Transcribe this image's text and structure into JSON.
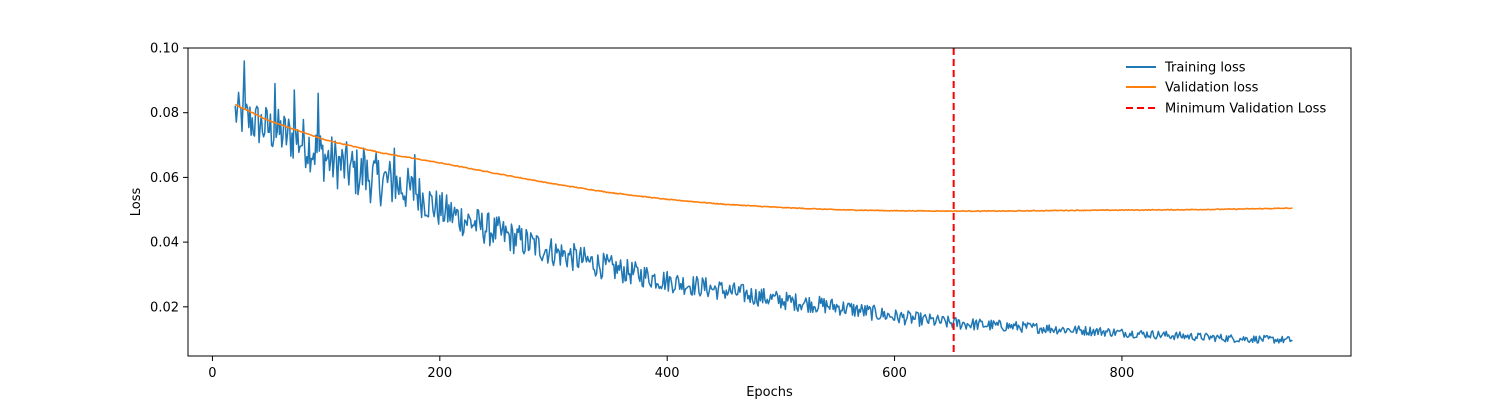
{
  "chart_data": {
    "type": "line",
    "title": "",
    "xlabel": "Epochs",
    "ylabel": "Loss",
    "xlim": [
      -21.5,
      1001.5
    ],
    "ylim": [
      0.0048,
      0.1
    ],
    "xticks": [
      0,
      200,
      400,
      600,
      800
    ],
    "yticks": [
      0.02,
      0.04,
      0.06,
      0.08,
      0.1
    ],
    "ytick_labels": [
      "0.02",
      "0.04",
      "0.06",
      "0.08",
      "0.10"
    ],
    "grid": false,
    "legend_position": "upper-right",
    "series": [
      {
        "name": "Training loss",
        "color": "#1f77b4",
        "style": "solid",
        "x_start": 20,
        "x_end": 950,
        "trend_points": [
          [
            20,
            0.08
          ],
          [
            30,
            0.078
          ],
          [
            50,
            0.075
          ],
          [
            80,
            0.071
          ],
          [
            100,
            0.066
          ],
          [
            130,
            0.061
          ],
          [
            160,
            0.058
          ],
          [
            180,
            0.055
          ],
          [
            200,
            0.05
          ],
          [
            250,
            0.043
          ],
          [
            300,
            0.037
          ],
          [
            350,
            0.032
          ],
          [
            400,
            0.028
          ],
          [
            450,
            0.025
          ],
          [
            500,
            0.022
          ],
          [
            550,
            0.02
          ],
          [
            600,
            0.017
          ],
          [
            650,
            0.015
          ],
          [
            700,
            0.014
          ],
          [
            750,
            0.013
          ],
          [
            800,
            0.012
          ],
          [
            850,
            0.011
          ],
          [
            900,
            0.0102
          ],
          [
            950,
            0.0097
          ]
        ],
        "noise": [
          [
            20,
            0.006
          ],
          [
            100,
            0.007
          ],
          [
            150,
            0.007
          ],
          [
            200,
            0.005
          ],
          [
            300,
            0.004
          ],
          [
            400,
            0.003
          ],
          [
            500,
            0.0025
          ],
          [
            600,
            0.002
          ],
          [
            700,
            0.0015
          ],
          [
            800,
            0.0012
          ],
          [
            950,
            0.001
          ]
        ],
        "peaks": [
          [
            28,
            0.096
          ],
          [
            55,
            0.089
          ],
          [
            72,
            0.087
          ],
          [
            93,
            0.086
          ],
          [
            133,
            0.069
          ],
          [
            160,
            0.069
          ],
          [
            178,
            0.067
          ]
        ]
      },
      {
        "name": "Validation loss",
        "color": "#ff7f0e",
        "style": "solid",
        "points": [
          [
            20,
            0.0825
          ],
          [
            50,
            0.0775
          ],
          [
            100,
            0.0715
          ],
          [
            150,
            0.0675
          ],
          [
            200,
            0.0645
          ],
          [
            250,
            0.0612
          ],
          [
            300,
            0.058
          ],
          [
            350,
            0.0553
          ],
          [
            400,
            0.0532
          ],
          [
            450,
            0.0517
          ],
          [
            500,
            0.0507
          ],
          [
            550,
            0.05
          ],
          [
            600,
            0.0497
          ],
          [
            650,
            0.0496
          ],
          [
            700,
            0.0496
          ],
          [
            750,
            0.0498
          ],
          [
            800,
            0.0499
          ],
          [
            850,
            0.05
          ],
          [
            900,
            0.0502
          ],
          [
            950,
            0.0505
          ]
        ]
      },
      {
        "name": "Minimum Validation Loss",
        "color": "#ff0000",
        "style": "dashed",
        "vline_x": 652
      }
    ]
  }
}
